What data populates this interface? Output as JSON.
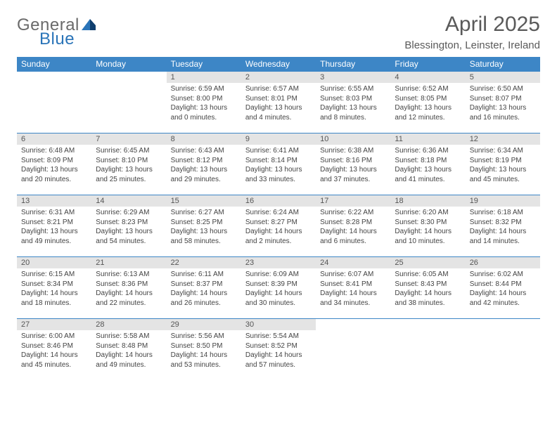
{
  "logo": {
    "text_a": "General",
    "text_b": "Blue"
  },
  "title": "April 2025",
  "location": "Blessington, Leinster, Ireland",
  "colors": {
    "header_bg": "#3d86c6",
    "header_text": "#ffffff",
    "daynum_bg": "#e4e4e4",
    "cell_border": "#3d86c6",
    "logo_gray": "#6a6a6a",
    "logo_blue": "#2a74b8",
    "title_color": "#5a5a5a"
  },
  "weekdays": [
    "Sunday",
    "Monday",
    "Tuesday",
    "Wednesday",
    "Thursday",
    "Friday",
    "Saturday"
  ],
  "weeks": [
    [
      null,
      null,
      {
        "n": "1",
        "sr": "6:59 AM",
        "ss": "8:00 PM",
        "dl": "13 hours and 0 minutes."
      },
      {
        "n": "2",
        "sr": "6:57 AM",
        "ss": "8:01 PM",
        "dl": "13 hours and 4 minutes."
      },
      {
        "n": "3",
        "sr": "6:55 AM",
        "ss": "8:03 PM",
        "dl": "13 hours and 8 minutes."
      },
      {
        "n": "4",
        "sr": "6:52 AM",
        "ss": "8:05 PM",
        "dl": "13 hours and 12 minutes."
      },
      {
        "n": "5",
        "sr": "6:50 AM",
        "ss": "8:07 PM",
        "dl": "13 hours and 16 minutes."
      }
    ],
    [
      {
        "n": "6",
        "sr": "6:48 AM",
        "ss": "8:09 PM",
        "dl": "13 hours and 20 minutes."
      },
      {
        "n": "7",
        "sr": "6:45 AM",
        "ss": "8:10 PM",
        "dl": "13 hours and 25 minutes."
      },
      {
        "n": "8",
        "sr": "6:43 AM",
        "ss": "8:12 PM",
        "dl": "13 hours and 29 minutes."
      },
      {
        "n": "9",
        "sr": "6:41 AM",
        "ss": "8:14 PM",
        "dl": "13 hours and 33 minutes."
      },
      {
        "n": "10",
        "sr": "6:38 AM",
        "ss": "8:16 PM",
        "dl": "13 hours and 37 minutes."
      },
      {
        "n": "11",
        "sr": "6:36 AM",
        "ss": "8:18 PM",
        "dl": "13 hours and 41 minutes."
      },
      {
        "n": "12",
        "sr": "6:34 AM",
        "ss": "8:19 PM",
        "dl": "13 hours and 45 minutes."
      }
    ],
    [
      {
        "n": "13",
        "sr": "6:31 AM",
        "ss": "8:21 PM",
        "dl": "13 hours and 49 minutes."
      },
      {
        "n": "14",
        "sr": "6:29 AM",
        "ss": "8:23 PM",
        "dl": "13 hours and 54 minutes."
      },
      {
        "n": "15",
        "sr": "6:27 AM",
        "ss": "8:25 PM",
        "dl": "13 hours and 58 minutes."
      },
      {
        "n": "16",
        "sr": "6:24 AM",
        "ss": "8:27 PM",
        "dl": "14 hours and 2 minutes."
      },
      {
        "n": "17",
        "sr": "6:22 AM",
        "ss": "8:28 PM",
        "dl": "14 hours and 6 minutes."
      },
      {
        "n": "18",
        "sr": "6:20 AM",
        "ss": "8:30 PM",
        "dl": "14 hours and 10 minutes."
      },
      {
        "n": "19",
        "sr": "6:18 AM",
        "ss": "8:32 PM",
        "dl": "14 hours and 14 minutes."
      }
    ],
    [
      {
        "n": "20",
        "sr": "6:15 AM",
        "ss": "8:34 PM",
        "dl": "14 hours and 18 minutes."
      },
      {
        "n": "21",
        "sr": "6:13 AM",
        "ss": "8:36 PM",
        "dl": "14 hours and 22 minutes."
      },
      {
        "n": "22",
        "sr": "6:11 AM",
        "ss": "8:37 PM",
        "dl": "14 hours and 26 minutes."
      },
      {
        "n": "23",
        "sr": "6:09 AM",
        "ss": "8:39 PM",
        "dl": "14 hours and 30 minutes."
      },
      {
        "n": "24",
        "sr": "6:07 AM",
        "ss": "8:41 PM",
        "dl": "14 hours and 34 minutes."
      },
      {
        "n": "25",
        "sr": "6:05 AM",
        "ss": "8:43 PM",
        "dl": "14 hours and 38 minutes."
      },
      {
        "n": "26",
        "sr": "6:02 AM",
        "ss": "8:44 PM",
        "dl": "14 hours and 42 minutes."
      }
    ],
    [
      {
        "n": "27",
        "sr": "6:00 AM",
        "ss": "8:46 PM",
        "dl": "14 hours and 45 minutes."
      },
      {
        "n": "28",
        "sr": "5:58 AM",
        "ss": "8:48 PM",
        "dl": "14 hours and 49 minutes."
      },
      {
        "n": "29",
        "sr": "5:56 AM",
        "ss": "8:50 PM",
        "dl": "14 hours and 53 minutes."
      },
      {
        "n": "30",
        "sr": "5:54 AM",
        "ss": "8:52 PM",
        "dl": "14 hours and 57 minutes."
      },
      null,
      null,
      null
    ]
  ],
  "labels": {
    "sunrise": "Sunrise: ",
    "sunset": "Sunset: ",
    "daylight": "Daylight: "
  }
}
